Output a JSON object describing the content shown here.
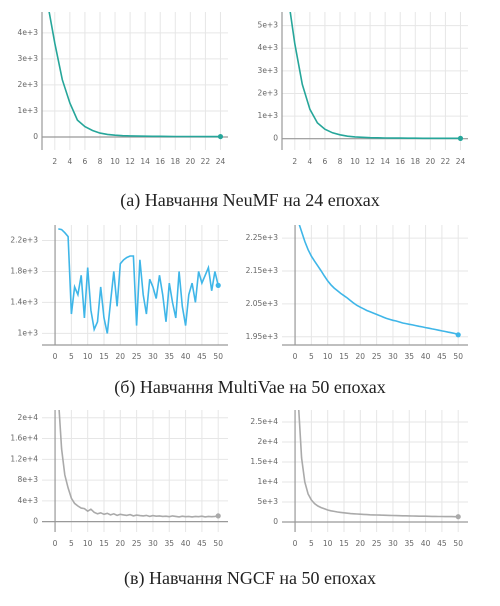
{
  "chart_data": [
    {
      "type": "line",
      "color": "#26a69a",
      "xlim": [
        0.3,
        25
      ],
      "ylim": [
        -500,
        4800
      ],
      "xticks": [
        2,
        4,
        6,
        8,
        10,
        12,
        14,
        16,
        18,
        20,
        22,
        24
      ],
      "yticks": [
        0,
        {
          "value": 1000,
          "label": "1e+3"
        },
        {
          "value": 2000,
          "label": "2e+3"
        },
        {
          "value": 3000,
          "label": "3e+3"
        },
        {
          "value": 4000,
          "label": "4e+3"
        }
      ],
      "x": [
        1,
        2,
        3,
        4,
        5,
        6,
        7,
        8,
        9,
        10,
        11,
        12,
        13,
        14,
        15,
        16,
        17,
        18,
        19,
        20,
        21,
        22,
        23,
        24
      ],
      "values": [
        5200,
        3600,
        2200,
        1300,
        650,
        400,
        250,
        150,
        100,
        70,
        50,
        40,
        35,
        30,
        28,
        25,
        22,
        20,
        20,
        18,
        18,
        16,
        15,
        15
      ]
    },
    {
      "type": "line",
      "color": "#26a69a",
      "xlim": [
        0.3,
        25
      ],
      "ylim": [
        -500,
        5600
      ],
      "xticks": [
        2,
        4,
        6,
        8,
        10,
        12,
        14,
        16,
        18,
        20,
        22,
        24
      ],
      "yticks": [
        0,
        {
          "value": 1000,
          "label": "1e+3"
        },
        {
          "value": 2000,
          "label": "2e+3"
        },
        {
          "value": 3000,
          "label": "3e+3"
        },
        {
          "value": 4000,
          "label": "4e+3"
        },
        {
          "value": 5000,
          "label": "5e+3"
        }
      ],
      "x": [
        1,
        2,
        3,
        4,
        5,
        6,
        7,
        8,
        9,
        10,
        11,
        12,
        13,
        14,
        15,
        16,
        17,
        18,
        19,
        20,
        21,
        22,
        23,
        24
      ],
      "values": [
        6500,
        4200,
        2400,
        1300,
        700,
        420,
        260,
        170,
        110,
        80,
        60,
        45,
        38,
        32,
        28,
        25,
        22,
        20,
        19,
        18,
        17,
        16,
        15,
        15
      ]
    },
    {
      "type": "line",
      "color": "#3fb6e8",
      "xlim": [
        -4,
        53
      ],
      "ylim": [
        850,
        2400
      ],
      "xticks": [
        0,
        5,
        10,
        15,
        20,
        25,
        30,
        35,
        40,
        45,
        50
      ],
      "yticks": [
        {
          "value": 1000,
          "label": "1e+3"
        },
        {
          "value": 1400,
          "label": "1.4e+3"
        },
        {
          "value": 1800,
          "label": "1.8e+3"
        },
        {
          "value": 2200,
          "label": "2.2e+3"
        }
      ],
      "x": [
        1,
        2,
        3,
        4,
        5,
        6,
        7,
        8,
        9,
        10,
        11,
        12,
        13,
        14,
        15,
        16,
        17,
        18,
        19,
        20,
        21,
        22,
        23,
        24,
        25,
        26,
        27,
        28,
        29,
        30,
        31,
        32,
        33,
        34,
        35,
        36,
        37,
        38,
        39,
        40,
        41,
        42,
        43,
        44,
        45,
        46,
        47,
        48,
        49,
        50
      ],
      "values": [
        2350,
        2340,
        2300,
        2250,
        1250,
        1600,
        1500,
        1750,
        1200,
        1850,
        1300,
        1050,
        1150,
        1600,
        1200,
        1000,
        1400,
        1800,
        1350,
        1900,
        1950,
        1980,
        2000,
        2000,
        1100,
        1950,
        1500,
        1250,
        1700,
        1600,
        1450,
        1750,
        1500,
        1150,
        1650,
        1400,
        1200,
        1800,
        1350,
        1100,
        1500,
        1650,
        1400,
        1800,
        1650,
        1750,
        1850,
        1550,
        1800,
        1620
      ]
    },
    {
      "type": "line",
      "color": "#3fb6e8",
      "xlim": [
        -4,
        53
      ],
      "ylim": [
        1925,
        2290
      ],
      "xticks": [
        0,
        5,
        10,
        15,
        20,
        25,
        30,
        35,
        40,
        45,
        50
      ],
      "yticks": [
        {
          "value": 1950,
          "label": "1.95e+3"
        },
        {
          "value": 2050,
          "label": "2.05e+3"
        },
        {
          "value": 2150,
          "label": "2.15e+3"
        },
        {
          "value": 2250,
          "label": "2.25e+3"
        }
      ],
      "x": [
        1,
        2,
        3,
        4,
        5,
        6,
        7,
        8,
        9,
        10,
        11,
        12,
        13,
        14,
        15,
        16,
        17,
        18,
        19,
        20,
        21,
        22,
        23,
        24,
        25,
        26,
        27,
        28,
        29,
        30,
        31,
        32,
        33,
        34,
        35,
        36,
        37,
        38,
        39,
        40,
        41,
        42,
        43,
        44,
        45,
        46,
        47,
        48,
        49,
        50
      ],
      "values": [
        2300,
        2270,
        2240,
        2215,
        2195,
        2180,
        2165,
        2150,
        2135,
        2120,
        2108,
        2098,
        2090,
        2082,
        2075,
        2068,
        2060,
        2052,
        2045,
        2040,
        2035,
        2030,
        2026,
        2022,
        2018,
        2014,
        2010,
        2006,
        2003,
        2000,
        1998,
        1995,
        1992,
        1990,
        1988,
        1986,
        1984,
        1982,
        1980,
        1978,
        1976,
        1974,
        1972,
        1970,
        1968,
        1966,
        1964,
        1962,
        1960,
        1956
      ]
    },
    {
      "type": "line",
      "color": "#aaaaaa",
      "xlim": [
        -4,
        53
      ],
      "ylim": [
        -2000,
        21500
      ],
      "xticks": [
        0,
        5,
        10,
        15,
        20,
        25,
        30,
        35,
        40,
        45,
        50
      ],
      "yticks": [
        0,
        {
          "value": 4000,
          "label": "4e+3"
        },
        {
          "value": 8000,
          "label": "8e+3"
        },
        {
          "value": 12000,
          "label": "1.2e+4"
        },
        {
          "value": 16000,
          "label": "1.6e+4"
        },
        {
          "value": 20000,
          "label": "2e+4"
        }
      ],
      "x": [
        1,
        2,
        3,
        4,
        5,
        6,
        7,
        8,
        9,
        10,
        11,
        12,
        13,
        14,
        15,
        16,
        17,
        18,
        19,
        20,
        21,
        22,
        23,
        24,
        25,
        26,
        27,
        28,
        29,
        30,
        31,
        32,
        33,
        34,
        35,
        36,
        37,
        38,
        39,
        40,
        41,
        42,
        43,
        44,
        45,
        46,
        47,
        48,
        49,
        50
      ],
      "values": [
        24000,
        14000,
        9000,
        6500,
        4500,
        3500,
        3000,
        2600,
        2500,
        2000,
        2400,
        1800,
        1500,
        1700,
        1400,
        1600,
        1300,
        1500,
        1200,
        1400,
        1300,
        1200,
        1350,
        1100,
        1250,
        1150,
        1100,
        1200,
        1000,
        1150,
        1050,
        1100,
        1000,
        1050,
        950,
        1100,
        1000,
        900,
        1050,
        950,
        1000,
        900,
        1000,
        950,
        1050,
        900,
        1000,
        950,
        1000,
        1100
      ]
    },
    {
      "type": "line",
      "color": "#aaaaaa",
      "xlim": [
        -4,
        53
      ],
      "ylim": [
        -2500,
        28000
      ],
      "xticks": [
        0,
        5,
        10,
        15,
        20,
        25,
        30,
        35,
        40,
        45,
        50
      ],
      "yticks": [
        0,
        {
          "value": 5000,
          "label": "5e+3"
        },
        {
          "value": 10000,
          "label": "1e+4"
        },
        {
          "value": 15000,
          "label": "1.5e+4"
        },
        {
          "value": 20000,
          "label": "2e+4"
        },
        {
          "value": 25000,
          "label": "2.5e+4"
        }
      ],
      "x": [
        1,
        2,
        3,
        4,
        5,
        6,
        7,
        8,
        9,
        10,
        11,
        12,
        13,
        14,
        15,
        16,
        17,
        18,
        19,
        20,
        21,
        22,
        23,
        24,
        25,
        26,
        27,
        28,
        29,
        30,
        31,
        32,
        33,
        34,
        35,
        36,
        37,
        38,
        39,
        40,
        41,
        42,
        43,
        44,
        45,
        46,
        47,
        48,
        49,
        50
      ],
      "values": [
        30000,
        16000,
        10000,
        7000,
        5500,
        4600,
        4000,
        3600,
        3300,
        3000,
        2800,
        2650,
        2500,
        2400,
        2300,
        2200,
        2100,
        2050,
        2000,
        1950,
        1900,
        1850,
        1800,
        1780,
        1750,
        1720,
        1700,
        1680,
        1650,
        1630,
        1600,
        1580,
        1560,
        1540,
        1520,
        1500,
        1480,
        1460,
        1450,
        1440,
        1420,
        1400,
        1390,
        1380,
        1370,
        1360,
        1350,
        1340,
        1330,
        1320
      ]
    }
  ],
  "captions": [
    "(а) Навчання NeuMF на 24 епохах",
    "(б) Навчання MultiVae на 50 епохах",
    "(в) Навчання NGCF на 50 епохах"
  ]
}
